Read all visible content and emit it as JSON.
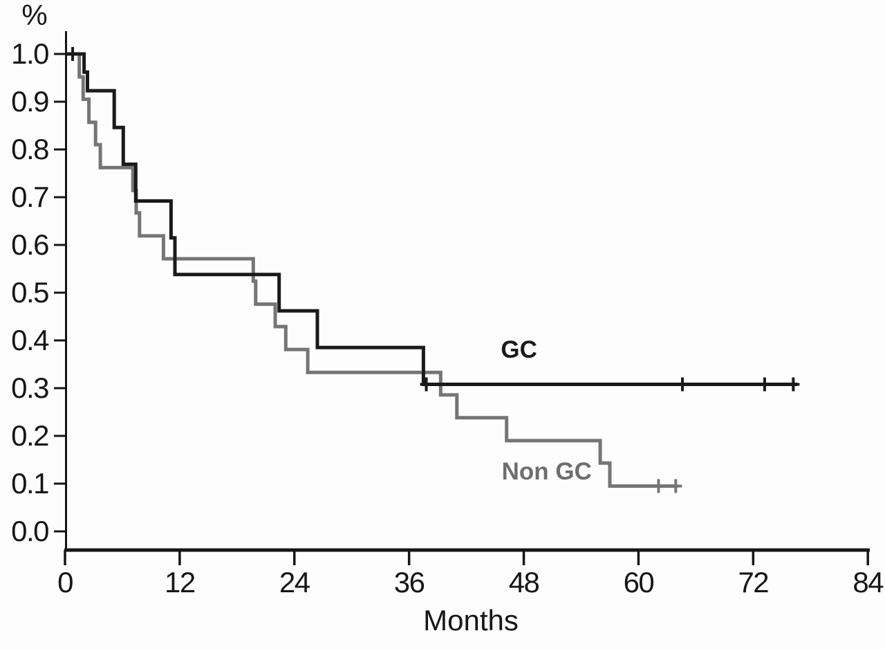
{
  "chart_data": {
    "type": "line",
    "subtype": "kaplan-meier-step",
    "title": "",
    "xlabel": "Months",
    "ylabel": "%",
    "xlim": [
      0,
      84
    ],
    "ylim": [
      0.0,
      1.0
    ],
    "grid": false,
    "x_ticks": [
      0,
      12,
      24,
      36,
      48,
      60,
      72,
      84
    ],
    "y_ticks": [
      {
        "value": 0.0,
        "label": "0.0"
      },
      {
        "value": 0.1,
        "label": "0.1"
      },
      {
        "value": 0.2,
        "label": "0.2"
      },
      {
        "value": 0.3,
        "label": "0.3"
      },
      {
        "value": 0.4,
        "label": "0.4"
      },
      {
        "value": 0.5,
        "label": "0.5"
      },
      {
        "value": 0.6,
        "label": "0.6"
      },
      {
        "value": 0.7,
        "label": "0.7"
      },
      {
        "value": 0.8,
        "label": "0.8"
      },
      {
        "value": 0.9,
        "label": "0.9"
      },
      {
        "value": 1.0,
        "label": "1.0"
      }
    ],
    "legend_position": "inline-annotations",
    "series": [
      {
        "name": "GC",
        "color": "#1a1a1a",
        "line_width": 5,
        "points": [
          [
            0,
            1.0
          ],
          [
            2.0,
            0.962
          ],
          [
            2.35,
            0.923
          ],
          [
            5.15,
            0.846
          ],
          [
            6.1,
            0.769
          ],
          [
            7.4,
            0.692
          ],
          [
            11.1,
            0.615
          ],
          [
            11.5,
            0.538
          ],
          [
            22.4,
            0.462
          ],
          [
            26.4,
            0.385
          ],
          [
            37.5,
            0.308
          ]
        ],
        "end_month": 76.6,
        "censor_marks": [
          [
            0.8,
            1.0
          ],
          [
            37.8,
            0.308
          ],
          [
            64.6,
            0.308
          ],
          [
            73.2,
            0.308
          ],
          [
            76.2,
            0.308
          ]
        ]
      },
      {
        "name": "Non GC",
        "color": "#757575",
        "line_width": 5,
        "points": [
          [
            0,
            1.0
          ],
          [
            1.5,
            0.952
          ],
          [
            1.9,
            0.905
          ],
          [
            2.5,
            0.857
          ],
          [
            3.2,
            0.81
          ],
          [
            3.7,
            0.762
          ],
          [
            7.1,
            0.714
          ],
          [
            7.45,
            0.667
          ],
          [
            7.8,
            0.619
          ],
          [
            10.3,
            0.571
          ],
          [
            19.7,
            0.524
          ],
          [
            19.95,
            0.476
          ],
          [
            22.0,
            0.429
          ],
          [
            23.1,
            0.381
          ],
          [
            25.4,
            0.333
          ],
          [
            39.3,
            0.286
          ],
          [
            41.0,
            0.238
          ],
          [
            46.2,
            0.19
          ],
          [
            56.0,
            0.143
          ],
          [
            57.0,
            0.095
          ]
        ],
        "end_month": 64.1,
        "censor_marks": [
          [
            62.1,
            0.095
          ],
          [
            63.9,
            0.095
          ]
        ]
      }
    ],
    "annotations": [
      {
        "label": "GC",
        "month": 47.5,
        "value": 0.381,
        "color": "#1a1a1a"
      },
      {
        "label": "Non GC",
        "month": 50.4,
        "value": 0.126,
        "color": "#6e6e6e"
      }
    ]
  }
}
